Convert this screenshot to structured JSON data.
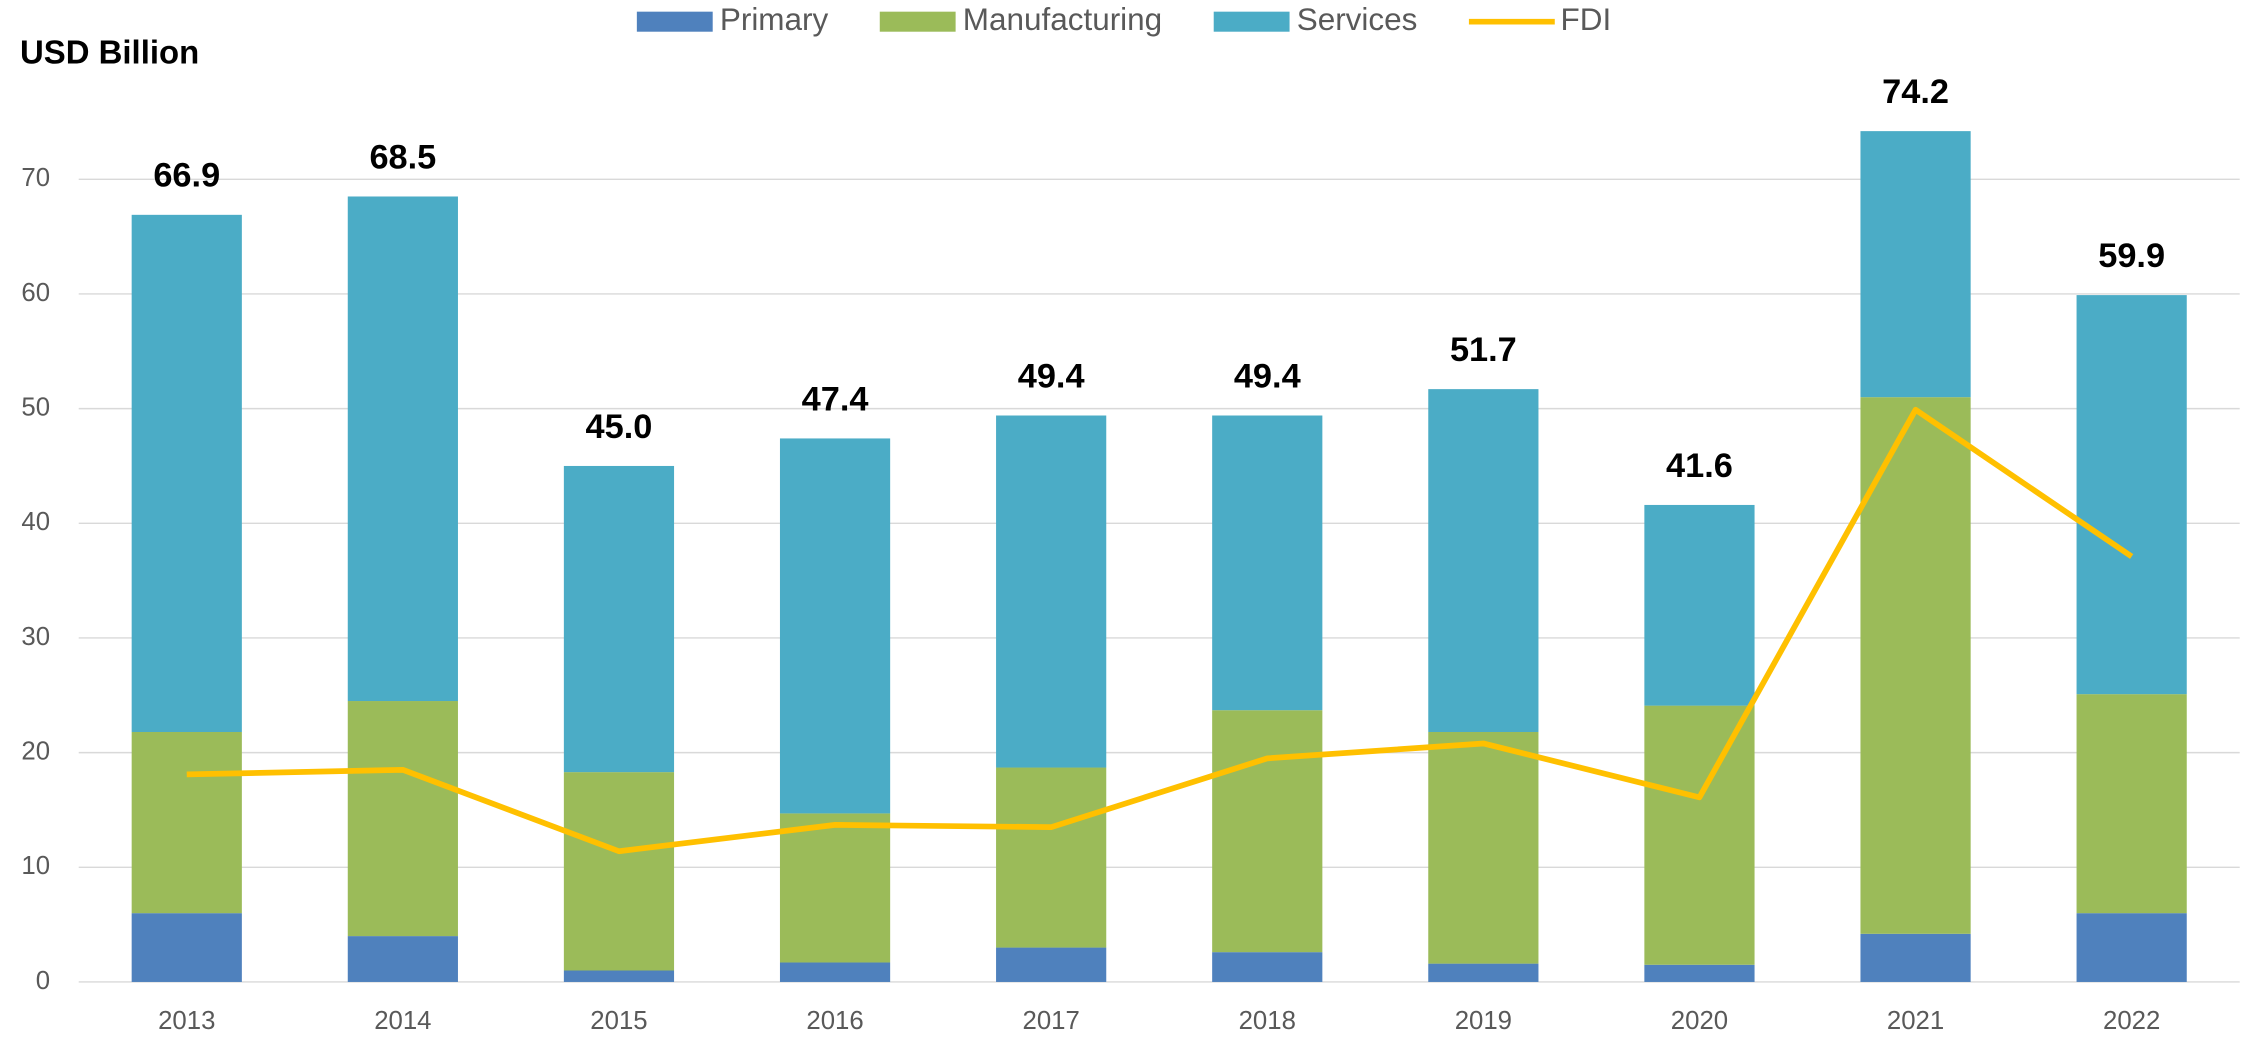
{
  "chart_data": {
    "type": "bar",
    "y_label": "USD Billion",
    "categories": [
      "2013",
      "2014",
      "2015",
      "2016",
      "2017",
      "2018",
      "2019",
      "2020",
      "2021",
      "2022"
    ],
    "series": [
      {
        "name": "Primary",
        "color": "#4f81bd",
        "values": [
          6.0,
          4.0,
          1.0,
          1.7,
          3.0,
          2.6,
          1.6,
          1.5,
          4.2,
          6.0
        ]
      },
      {
        "name": "Manufacturing",
        "color": "#9bbb59",
        "values": [
          15.8,
          20.5,
          17.3,
          13.0,
          15.7,
          21.1,
          20.2,
          22.6,
          46.8,
          19.1
        ]
      },
      {
        "name": "Services",
        "color": "#4bacc6",
        "values": [
          45.1,
          44.0,
          26.7,
          32.7,
          30.7,
          25.7,
          29.9,
          17.5,
          23.2,
          34.8
        ]
      },
      {
        "name": "FDI",
        "type": "line",
        "color": "#ffc000",
        "values": [
          18.1,
          18.5,
          11.4,
          13.7,
          13.5,
          19.5,
          20.8,
          16.1,
          49.9,
          37.1
        ]
      }
    ],
    "totals": {
      "values": [
        66.9,
        68.5,
        45.0,
        47.4,
        49.4,
        49.4,
        51.7,
        41.6,
        74.2,
        59.9
      ],
      "value_labels": [
        "66.9",
        "68.5",
        "45.0",
        "47.4",
        "49.4",
        "49.4",
        "51.7",
        "41.6",
        "74.2",
        "59.9"
      ]
    },
    "ylim": [
      0,
      80
    ],
    "yticks": [
      0,
      10,
      20,
      30,
      40,
      50,
      60,
      70
    ],
    "grid": true,
    "legend": "top"
  }
}
